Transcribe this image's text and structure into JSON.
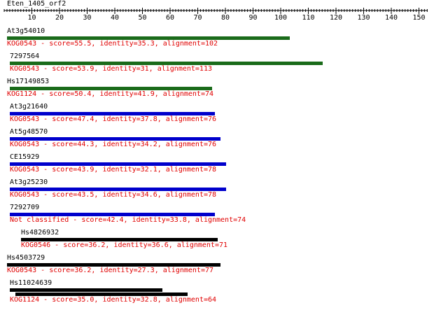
{
  "query": {
    "name": "Eten_1405_orf2"
  },
  "ruler": {
    "ticks": [
      "10",
      "20",
      "30",
      "40",
      "50",
      "60",
      "70",
      "80",
      "90",
      "100",
      "110",
      "120",
      "130",
      "140",
      "150"
    ]
  },
  "colors": {
    "green": "#1a6b1a",
    "blue": "#0000cc",
    "black": "#000000",
    "text_red": "#e00000"
  },
  "hits": [
    {
      "name": "At3g54010",
      "info": "KOG0543 - score=55.5, identity=35.3, alignment=102",
      "color": "green"
    },
    {
      "name": "7297564",
      "info": "KOG0543 - score=53.9, identity=31, alignment=113",
      "color": "green"
    },
    {
      "name": "Hs17149853",
      "info": "KOG1124 - score=50.4, identity=41.9, alignment=74",
      "color": "green"
    },
    {
      "name": "At3g21640",
      "info": "KOG0543 - score=47.4, identity=37.8, alignment=76",
      "color": "blue"
    },
    {
      "name": "At5g48570",
      "info": "KOG0543 - score=44.3, identity=34.2, alignment=76",
      "color": "blue"
    },
    {
      "name": "CE15929",
      "info": "KOG0543 - score=43.9, identity=32.1, alignment=78",
      "color": "blue"
    },
    {
      "name": "At3g25230",
      "info": "KOG0543 - score=43.5, identity=34.6, alignment=78",
      "color": "blue"
    },
    {
      "name": "7292709",
      "info": "Not classified - score=42.4, identity=33.8, alignment=74",
      "color": "blue"
    },
    {
      "name": "Hs4826932",
      "info": "KOG0546 - score=36.2, identity=36.6, alignment=71",
      "color": "black"
    },
    {
      "name": "Hs4503729",
      "info": "KOG0543 - score=36.2, identity=27.3, alignment=77",
      "color": "black"
    },
    {
      "name": "Hs11024639",
      "info": "KOG1124 - score=35.0, identity=32.8, alignment=64",
      "color": "black"
    }
  ]
}
